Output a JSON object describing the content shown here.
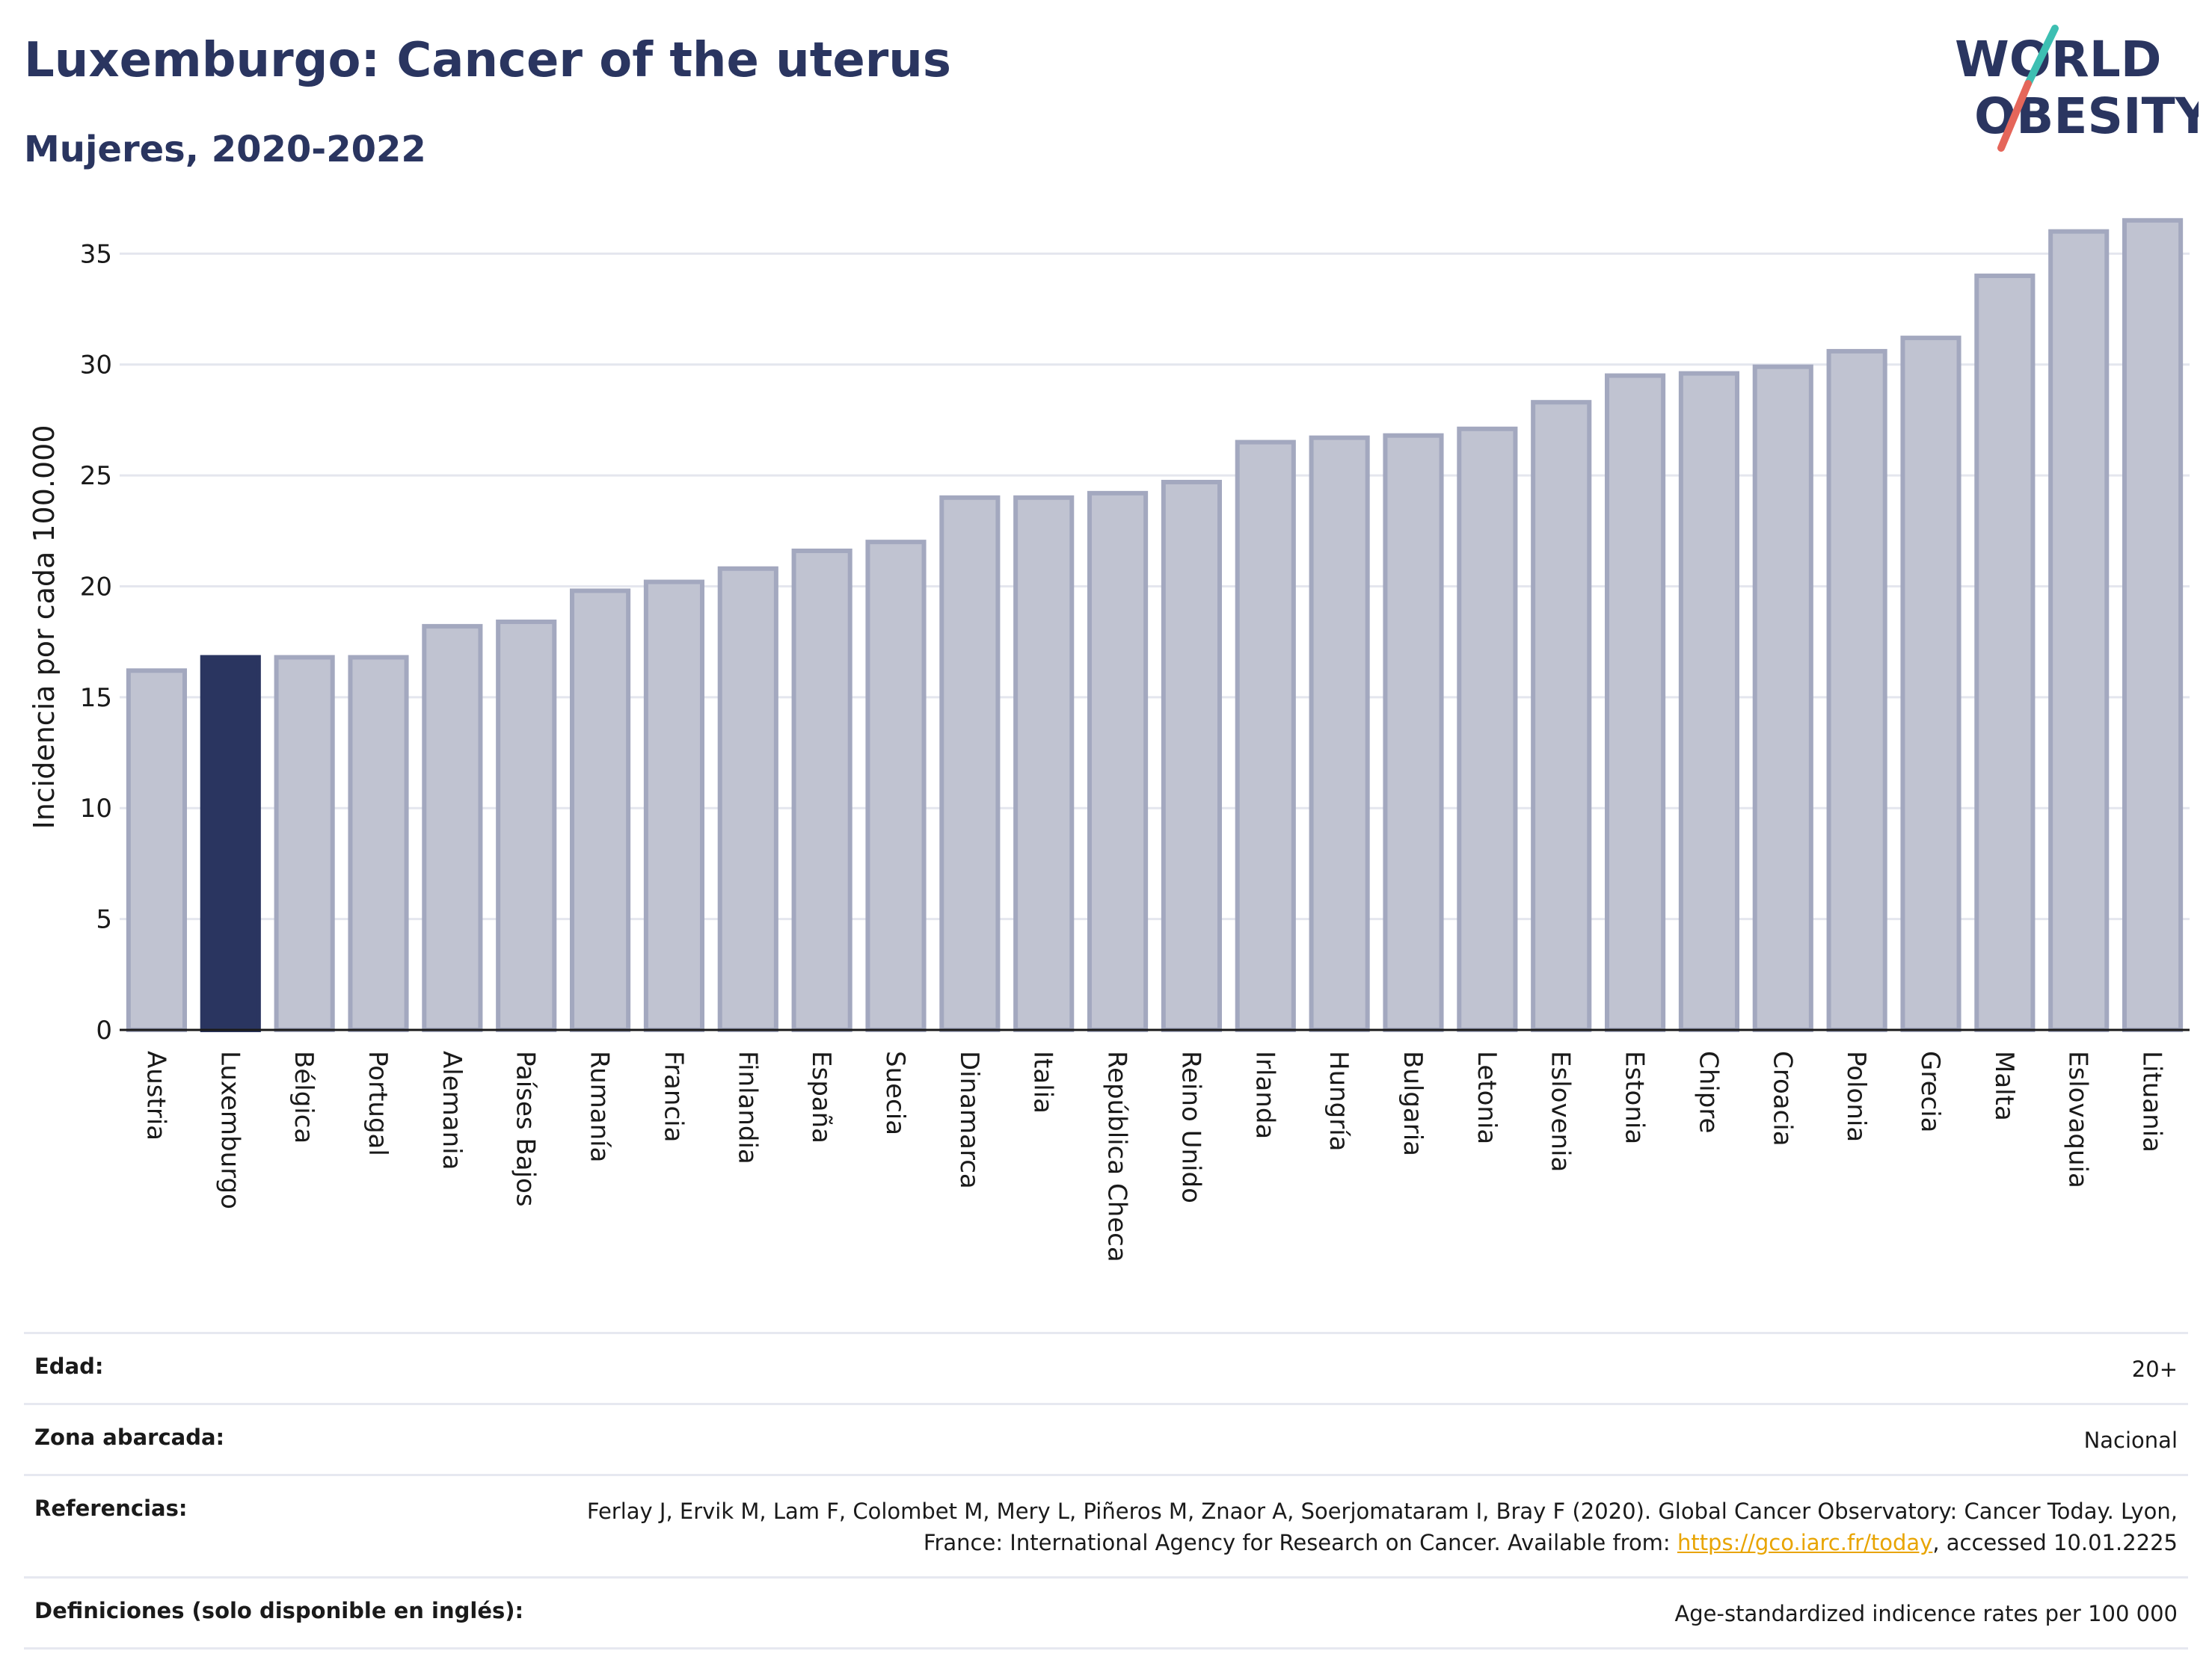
{
  "header": {
    "title": "Luxemburgo: Cancer of the uterus",
    "subtitle": "Mujeres, 2020-2022"
  },
  "logo": {
    "line1": "WORLD",
    "line2": "OBESITY"
  },
  "colors": {
    "highlight": "#2a3560",
    "bar": "#c0c3d1",
    "bar_stroke": "#a3a8bf",
    "grid": "#e4e6ee",
    "axis": "#1a1a1a",
    "link": "#e8a400"
  },
  "chart_data": {
    "type": "bar",
    "ylabel": "Incidencia por cada 100.000",
    "ylim": [
      0,
      37
    ],
    "yticks": [
      0,
      5,
      10,
      15,
      20,
      25,
      30,
      35
    ],
    "grid": true,
    "highlight": "Luxemburgo",
    "categories": [
      "Austria",
      "Luxemburgo",
      "Bélgica",
      "Portugal",
      "Alemania",
      "Países Bajos",
      "Rumanía",
      "Francia",
      "Finlandia",
      "España",
      "Suecia",
      "Dinamarca",
      "Italia",
      "República Checa",
      "Reino Unido",
      "Irlanda",
      "Hungría",
      "Bulgaria",
      "Letonia",
      "Eslovenia",
      "Estonia",
      "Chipre",
      "Croacia",
      "Polonia",
      "Grecia",
      "Malta",
      "Eslovaquia",
      "Lituania"
    ],
    "values": [
      16.2,
      16.8,
      16.8,
      16.8,
      18.2,
      18.4,
      19.8,
      20.2,
      20.8,
      21.6,
      22.0,
      24.0,
      24.0,
      24.2,
      24.7,
      26.5,
      26.7,
      26.8,
      27.1,
      28.3,
      29.5,
      29.6,
      29.9,
      30.6,
      31.2,
      34.0,
      36.0,
      36.5
    ]
  },
  "meta": {
    "age_label": "Edad:",
    "age_value": "20+",
    "area_label": "Zona abarcada:",
    "area_value": "Nacional",
    "ref_label": "Referencias:",
    "ref_text_1": "Ferlay J, Ervik M, Lam F, Colombet M, Mery L, Piñeros M, Znaor A, Soerjomataram I, Bray F (2020). Global Cancer Observatory: Cancer Today. Lyon, France: International Agency for Research on Cancer. Available from: ",
    "ref_link": "https://gco.iarc.fr/today",
    "ref_text_2": ", accessed 10.01.2225",
    "def_label": "Definiciones (solo disponible en inglés):",
    "def_value": "Age-standardized indicence rates per 100 000"
  }
}
